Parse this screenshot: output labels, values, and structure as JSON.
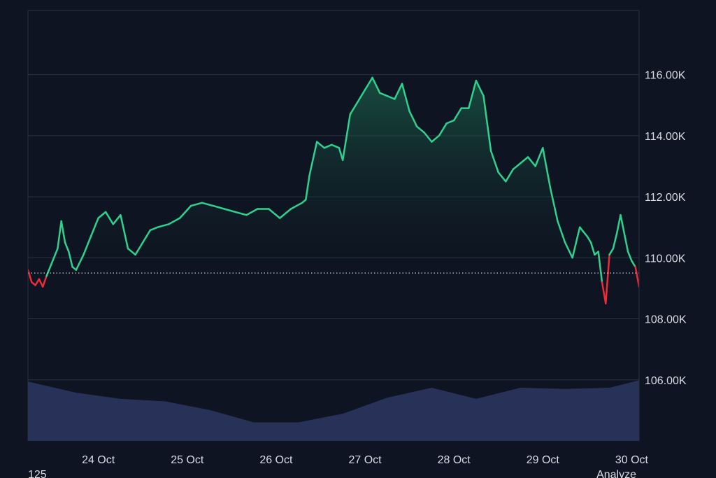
{
  "chart_data": {
    "type": "area",
    "title": "",
    "xlabel": "",
    "ylabel": "",
    "x_tick_labels": [
      "24 Oct",
      "25 Oct",
      "26 Oct",
      "27 Oct",
      "28 Oct",
      "29 Oct",
      "30 Oct"
    ],
    "y_tick_labels": [
      "116.00K",
      "114.00K",
      "112.00K",
      "110.00K",
      "108.00K",
      "106.00K"
    ],
    "y_ticks": [
      116000,
      114000,
      112000,
      110000,
      108000,
      106000
    ],
    "ylim": [
      104000,
      118100
    ],
    "xlim": [
      "2025-10-23 17:00",
      "2025-10-30 14:00"
    ],
    "baseline": 109500,
    "grid": true,
    "colors": {
      "above_baseline": "#2fd18e",
      "below_baseline": "#ee2b39",
      "volume": "#283258",
      "background": "#0e1421",
      "grid": "#2a3342",
      "text": "#d8dce3"
    },
    "series": [
      {
        "x": [
          "2025-10-23 17:00",
          "2025-10-23 18:00",
          "2025-10-23 19:00",
          "2025-10-23 20:00",
          "2025-10-23 21:00",
          "2025-10-23 22:00",
          "2025-10-23 23:00",
          "2025-10-24 00:00",
          "2025-10-24 01:00",
          "2025-10-24 02:00",
          "2025-10-24 03:00",
          "2025-10-24 04:00",
          "2025-10-24 05:00",
          "2025-10-24 06:00",
          "2025-10-24 08:00",
          "2025-10-24 10:00",
          "2025-10-24 12:00",
          "2025-10-24 14:00",
          "2025-10-24 16:00",
          "2025-10-24 18:00",
          "2025-10-24 20:00",
          "2025-10-24 22:00",
          "2025-10-25 00:00",
          "2025-10-25 01:00",
          "2025-10-25 02:00",
          "2025-10-25 04:00",
          "2025-10-25 07:00",
          "2025-10-25 10:00",
          "2025-10-25 13:00",
          "2025-10-25 16:00",
          "2025-10-25 19:00",
          "2025-10-25 22:00",
          "2025-10-26 01:00",
          "2025-10-26 04:00",
          "2025-10-26 07:00",
          "2025-10-26 10:00",
          "2025-10-26 13:00",
          "2025-10-26 16:00",
          "2025-10-26 19:00",
          "2025-10-26 20:00",
          "2025-10-26 21:00",
          "2025-10-26 23:00",
          "2025-10-27 01:00",
          "2025-10-27 03:00",
          "2025-10-27 05:00",
          "2025-10-27 06:00",
          "2025-10-27 08:00",
          "2025-10-27 10:00",
          "2025-10-27 12:00",
          "2025-10-27 14:00",
          "2025-10-27 16:00",
          "2025-10-27 18:00",
          "2025-10-27 20:00",
          "2025-10-27 22:00",
          "2025-10-28 00:00",
          "2025-10-28 02:00",
          "2025-10-28 04:00",
          "2025-10-28 06:00",
          "2025-10-28 08:00",
          "2025-10-28 10:00",
          "2025-10-28 12:00",
          "2025-10-28 14:00",
          "2025-10-28 16:00",
          "2025-10-28 18:00",
          "2025-10-28 20:00",
          "2025-10-28 22:00",
          "2025-10-29 00:00",
          "2025-10-29 02:00",
          "2025-10-29 04:00",
          "2025-10-29 06:00",
          "2025-10-29 08:00",
          "2025-10-29 10:00",
          "2025-10-29 12:00",
          "2025-10-29 14:00",
          "2025-10-29 16:00",
          "2025-10-29 18:00",
          "2025-10-29 20:00",
          "2025-10-29 22:00",
          "2025-10-30 00:00",
          "2025-10-30 01:00",
          "2025-10-30 02:00",
          "2025-10-30 03:00",
          "2025-10-30 04:00",
          "2025-10-30 05:00",
          "2025-10-30 06:00",
          "2025-10-30 07:00",
          "2025-10-30 08:00",
          "2025-10-30 09:00",
          "2025-10-30 10:00",
          "2025-10-30 11:00",
          "2025-10-30 12:00",
          "2025-10-30 13:00",
          "2025-10-30 14:00"
        ],
        "y": [
          109600,
          109200,
          109100,
          109300,
          109050,
          109400,
          109700,
          110000,
          110300,
          111200,
          110500,
          110200,
          109700,
          109600,
          110100,
          110700,
          111300,
          111500,
          111100,
          111400,
          110300,
          110100,
          110500,
          110700,
          110900,
          111000,
          111100,
          111300,
          111700,
          111800,
          111700,
          111600,
          111500,
          111400,
          111600,
          111600,
          111300,
          111600,
          111800,
          111900,
          112700,
          113800,
          113600,
          113700,
          113600,
          113200,
          114700,
          115100,
          115500,
          115900,
          115400,
          115300,
          115200,
          115700,
          114800,
          114300,
          114100,
          113800,
          114000,
          114400,
          114500,
          114900,
          114900,
          115800,
          115300,
          113500,
          112800,
          112500,
          112900,
          113100,
          113300,
          113000,
          113600,
          112300,
          111200,
          110500,
          110000,
          111000,
          110700,
          110500,
          110100,
          110200,
          109200,
          108500,
          110100,
          110300,
          110800,
          111400,
          110800,
          110200,
          109900,
          109700,
          109050
        ]
      }
    ],
    "volume": {
      "x": [
        "2025-10-23 17:00",
        "2025-10-24 06:00",
        "2025-10-24 18:00",
        "2025-10-25 06:00",
        "2025-10-25 18:00",
        "2025-10-26 06:00",
        "2025-10-26 18:00",
        "2025-10-27 06:00",
        "2025-10-27 18:00",
        "2025-10-28 06:00",
        "2025-10-28 18:00",
        "2025-10-29 06:00",
        "2025-10-29 18:00",
        "2025-10-30 06:00",
        "2025-10-30 14:00"
      ],
      "values": [
        0.96,
        0.78,
        0.68,
        0.64,
        0.5,
        0.3,
        0.3,
        0.44,
        0.7,
        0.86,
        0.68,
        0.86,
        0.84,
        0.86,
        0.98
      ]
    },
    "footer_left": "125",
    "footer_right": "Analyze"
  }
}
